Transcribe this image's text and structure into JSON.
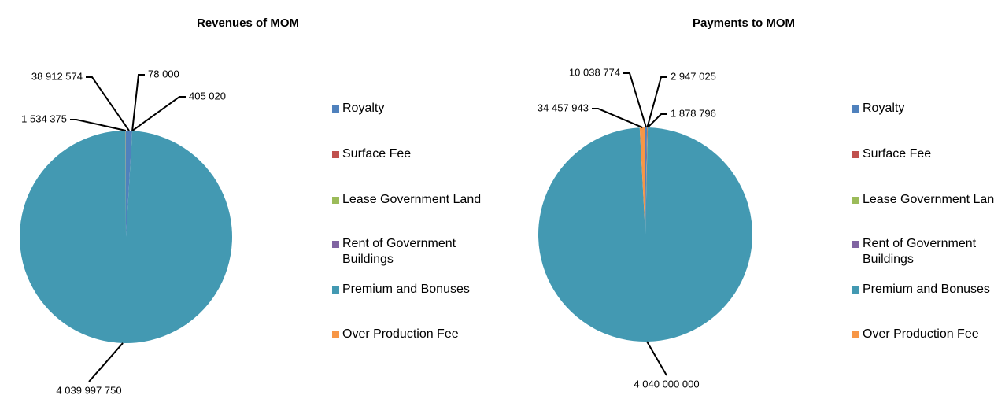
{
  "chart_data": [
    {
      "type": "pie",
      "title": "Revenues of MOM",
      "categories": [
        "Royalty",
        "Surface Fee",
        "Lease Government Land",
        "Rent of Government Buildings",
        "Premium and Bonuses",
        "Over Production Fee"
      ],
      "values": [
        38912574,
        78000,
        405020,
        0,
        4039997750,
        1534375
      ],
      "value_labels": [
        "38 912 574",
        "78 000",
        "405 020",
        null,
        "4 039 997 750",
        "1 534 375"
      ],
      "colors": [
        "#4f81bd",
        "#c0504d",
        "#9bbb59",
        "#8064a2",
        "#4399b2",
        "#f79646"
      ]
    },
    {
      "type": "pie",
      "title": "Payments to MOM",
      "categories": [
        "Royalty",
        "Surface Fee",
        "Lease Government Land",
        "Rent of Government Buildings",
        "Premium and Bonuses",
        "Over Production Fee"
      ],
      "values": [
        10038774,
        2947025,
        1878796,
        0,
        4040000000,
        34457943
      ],
      "value_labels": [
        "10 038 774",
        "2 947 025",
        "1 878 796",
        null,
        "4 040 000 000",
        "34 457 943"
      ],
      "colors": [
        "#4f81bd",
        "#c0504d",
        "#9bbb59",
        "#8064a2",
        "#4399b2",
        "#f79646"
      ]
    }
  ]
}
